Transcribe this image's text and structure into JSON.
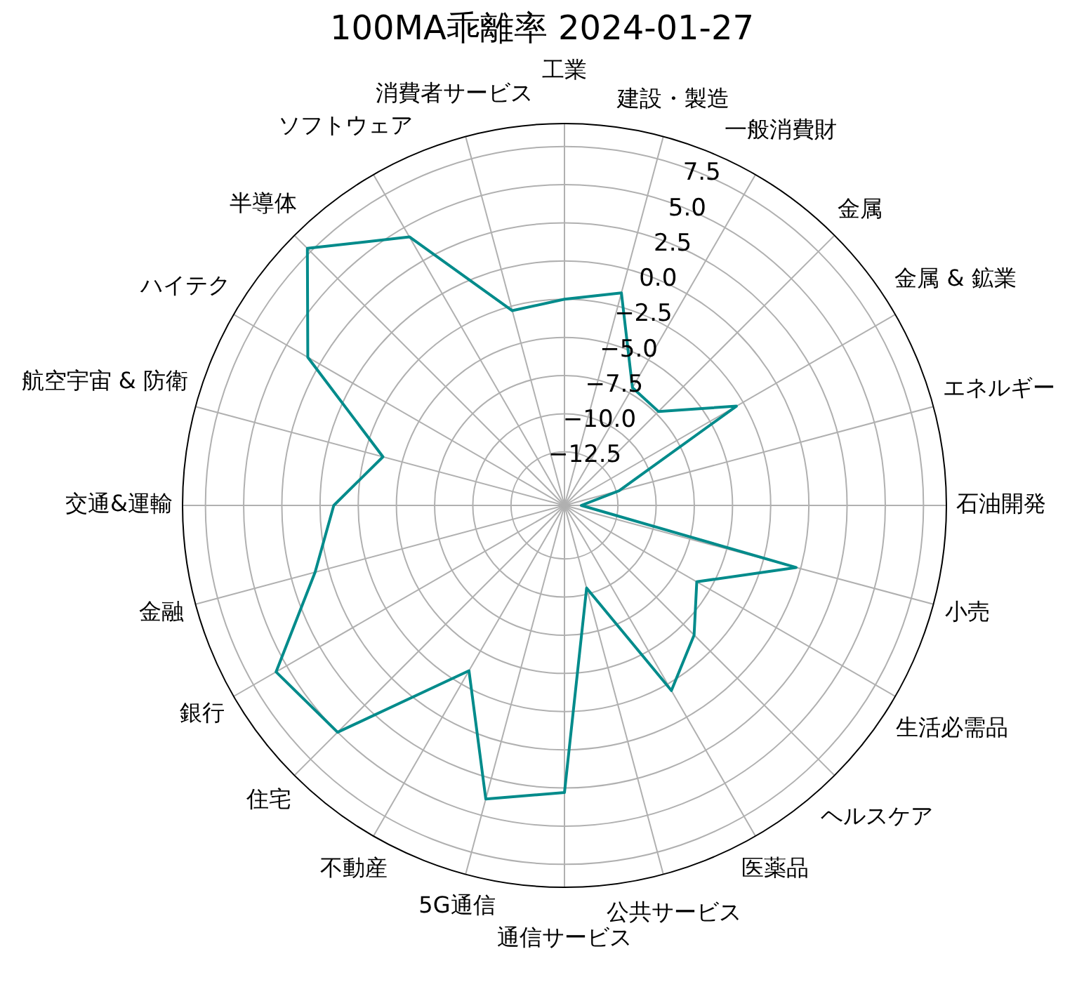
{
  "chart_data": {
    "type": "radar",
    "title": "100MA乖離率 2024-01-27",
    "categories": [
      "工業",
      "建設・製造",
      "一般消費財",
      "金属",
      "金属 & 鉱業",
      "エネルギー",
      "石油開発",
      "小売",
      "生活必需品",
      "ヘルスケア",
      "医薬品",
      "公共サービス",
      "通信サービス",
      "5G通信",
      "不動産",
      "住宅",
      "銀行",
      "金融",
      "交通&運輸",
      "航空宇宙 & 防衛",
      "ハイテク",
      "半導体",
      "ソフトウェア",
      "消費者サービス"
    ],
    "series": [
      {
        "color": "#008b8b",
        "values": [
          -2.5,
          -1.6,
          -7.1,
          -7.3,
          -3.0,
          -12.3,
          -14.9,
          -0.3,
          -6.0,
          -4.0,
          -2.0,
          -10.4,
          2.8,
          3.9,
          -3.5,
          5.0,
          5.8,
          0.9,
          -0.9,
          -3.7,
          3.4,
          7.8,
          4.3,
          -2.8
        ]
      }
    ],
    "ylim": [
      -16,
      9
    ],
    "yticks": [
      {
        "value": -12.5,
        "label": "−12.5"
      },
      {
        "value": -10,
        "label": "−10.0"
      },
      {
        "value": -7.5,
        "label": "−7.5"
      },
      {
        "value": -5,
        "label": "−5.0"
      },
      {
        "value": -2.5,
        "label": "−2.5"
      },
      {
        "value": 0,
        "label": "0.0"
      },
      {
        "value": 2.5,
        "label": "2.5"
      },
      {
        "value": 5,
        "label": "5.0"
      },
      {
        "value": 7.5,
        "label": "7.5"
      }
    ],
    "grid": true
  }
}
